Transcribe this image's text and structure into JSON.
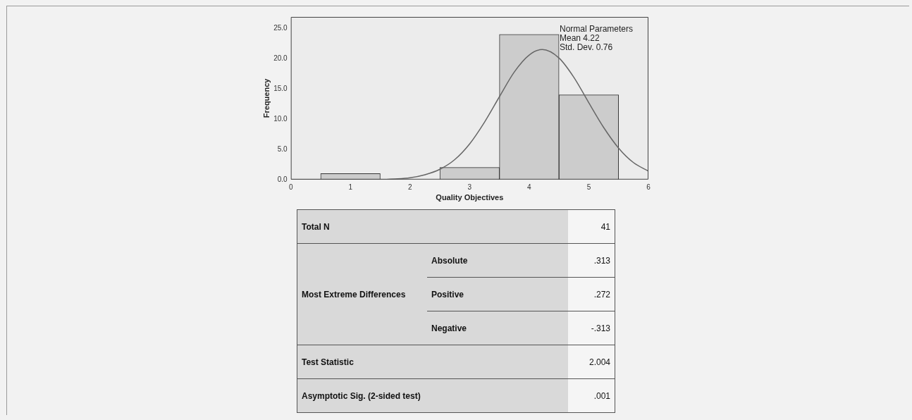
{
  "chart_data": [
    {
      "type": "histogram",
      "xlabel": "Quality Objectives",
      "ylabel": "Frequency",
      "bins": [
        0.5,
        1.5,
        2.5,
        3.5,
        4.5,
        5.5
      ],
      "values": [
        1,
        0,
        2,
        24,
        14
      ],
      "color": "#cccccc",
      "series": [
        {
          "type": "line",
          "color": "#666666",
          "x": [
            0,
            0.5,
            1,
            1.25,
            1.5,
            1.75,
            2,
            2.25,
            2.5,
            2.75,
            3,
            3.25,
            3.5,
            3.75,
            4,
            4.22,
            4.5,
            4.75,
            5,
            5.25,
            5.5,
            5.75,
            6
          ],
          "values": [
            0,
            0,
            0,
            0,
            0,
            0.1,
            0.3,
            0.8,
            1.7,
            3.3,
            5.9,
            9.5,
            13.7,
            17.8,
            20.6,
            21.5,
            20.1,
            16.9,
            12.7,
            8.6,
            5.2,
            2.8,
            1.4
          ]
        }
      ],
      "xlim": [
        0,
        6
      ],
      "xticks": [
        0,
        1,
        2,
        3,
        4,
        5,
        6
      ],
      "ylim": [
        0,
        26.9
      ],
      "yticks": [
        {
          "value": 0,
          "label": "0.0"
        },
        {
          "value": 5,
          "label": "5.0"
        },
        {
          "value": 10,
          "label": "10.0"
        },
        {
          "value": 15,
          "label": "15.0"
        },
        {
          "value": 20,
          "label": "20.0"
        },
        {
          "value": 25,
          "label": "25.0"
        }
      ],
      "annotations": [
        "Normal Parameters",
        "Mean 4.22",
        "Std. Dev. 0.76"
      ]
    },
    {
      "type": "other",
      "annotations": [
        "Total N",
        "41",
        "Most Extreme Differences",
        "Absolute",
        ".313",
        "Positive",
        ".272",
        "Negative",
        "-.313",
        "Test Statistic",
        "2.004",
        "Asymptotic Sig. (2-sided test)",
        ".001"
      ]
    }
  ]
}
